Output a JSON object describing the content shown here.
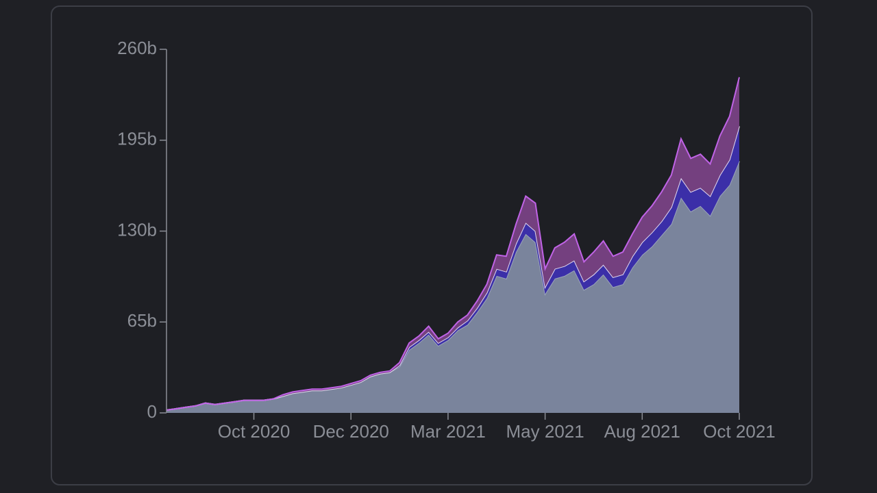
{
  "chart_data": {
    "type": "stacked_area",
    "categories": [
      null,
      null,
      null,
      null,
      null,
      null,
      null,
      null,
      null,
      "Oct 2020",
      null,
      null,
      null,
      null,
      null,
      null,
      null,
      null,
      null,
      "Dec 2020",
      null,
      null,
      null,
      null,
      null,
      null,
      null,
      null,
      null,
      "Mar 2021",
      null,
      null,
      null,
      null,
      null,
      null,
      null,
      null,
      null,
      "May 2021",
      null,
      null,
      null,
      null,
      null,
      null,
      null,
      null,
      null,
      "Aug 2021",
      null,
      null,
      null,
      null,
      null,
      null,
      null,
      null,
      null,
      "Oct 2021"
    ],
    "series": [
      {
        "color": "#7a849c",
        "line": "#9aa3ba",
        "values": [
          2,
          3,
          4,
          5,
          7,
          6,
          7,
          8,
          9,
          9,
          9,
          10,
          12,
          14,
          15,
          16,
          16,
          17,
          18,
          20,
          22,
          26,
          28,
          29,
          33,
          45,
          50,
          56,
          48,
          52,
          59,
          63,
          72,
          82,
          98,
          96,
          115,
          128,
          122,
          85,
          96,
          98,
          102,
          88,
          92,
          99,
          90,
          92,
          104,
          113,
          119,
          127,
          135,
          154,
          144,
          148,
          141,
          155,
          163,
          180
        ]
      },
      {
        "color": "#3b2fa8",
        "line": "#e0d8f0",
        "values": [
          0,
          0,
          0,
          0,
          0,
          0,
          0,
          0,
          0,
          0,
          0,
          0,
          0,
          0,
          0,
          0,
          0,
          0,
          0,
          0,
          0,
          0,
          0,
          0,
          1,
          2,
          2,
          2,
          2,
          2,
          2,
          3,
          3,
          4,
          5,
          5,
          6,
          8,
          8,
          5,
          7,
          7,
          7,
          6,
          7,
          7,
          7,
          7,
          8,
          9,
          10,
          10,
          12,
          14,
          14,
          13,
          14,
          15,
          18,
          25
        ]
      },
      {
        "color": "#74407f",
        "line": "#c063e6",
        "values": [
          0,
          0,
          0,
          0,
          0,
          0,
          0,
          0,
          0,
          0,
          0,
          0,
          1,
          1,
          1,
          1,
          1,
          1,
          1,
          1,
          1,
          1,
          1,
          1,
          2,
          3,
          3,
          4,
          3,
          3,
          4,
          4,
          5,
          6,
          10,
          11,
          14,
          19,
          20,
          13,
          15,
          17,
          19,
          14,
          16,
          17,
          15,
          16,
          16,
          18,
          19,
          21,
          23,
          28,
          24,
          24,
          23,
          28,
          31,
          35
        ]
      }
    ],
    "ylim": [
      0,
      260
    ],
    "yticks": [
      0,
      {
        "value": 65,
        "label": "65b"
      },
      {
        "value": 130,
        "label": "130b"
      },
      {
        "value": 195,
        "label": "195b"
      },
      {
        "value": 260,
        "label": "260b"
      }
    ]
  }
}
